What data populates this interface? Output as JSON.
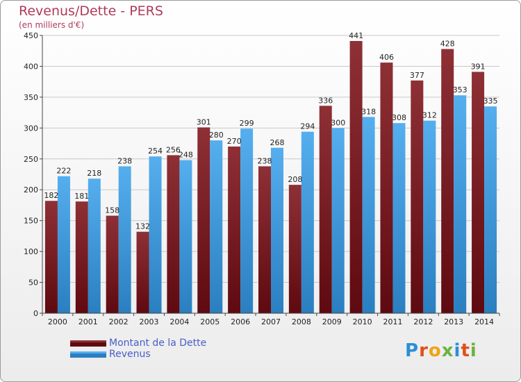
{
  "header": {
    "title": "Revenus/Dette - PERS",
    "subtitle": "(en milliers d'€)"
  },
  "colors": {
    "dette": "#7b1f24",
    "revenus": "#3d98dc",
    "title": "#b03a5a",
    "legend_text": "#4a5cc8"
  },
  "logo": {
    "letters": [
      {
        "ch": "P",
        "color": "#2b8fd6"
      },
      {
        "ch": "r",
        "color": "#e0501b"
      },
      {
        "ch": "o",
        "color": "#f0a318"
      },
      {
        "ch": "x",
        "color": "#6cb33f"
      },
      {
        "ch": "i",
        "color": "#2b8fd6"
      },
      {
        "ch": "t",
        "color": "#e0501b"
      },
      {
        "ch": "i",
        "color": "#6cb33f"
      }
    ]
  },
  "chart_data": {
    "type": "bar",
    "title": "Revenus/Dette - PERS",
    "subtitle": "(en milliers d'€)",
    "categories": [
      "2000",
      "2001",
      "2002",
      "2003",
      "2004",
      "2005",
      "2006",
      "2007",
      "2008",
      "2009",
      "2010",
      "2011",
      "2012",
      "2013",
      "2014"
    ],
    "series": [
      {
        "name": "Montant de la Dette",
        "color": "#7b1f24",
        "values": [
          182,
          181,
          158,
          132,
          256,
          301,
          270,
          238,
          208,
          336,
          441,
          406,
          377,
          428,
          391
        ]
      },
      {
        "name": "Revenus",
        "color": "#3d98dc",
        "values": [
          222,
          218,
          238,
          254,
          248,
          280,
          299,
          268,
          294,
          300,
          318,
          308,
          312,
          353,
          335
        ]
      }
    ],
    "ylim": [
      0,
      450
    ],
    "yticks": [
      0,
      50,
      100,
      150,
      200,
      250,
      300,
      350,
      400,
      450
    ],
    "grid": true,
    "legend": "bottom-left"
  }
}
